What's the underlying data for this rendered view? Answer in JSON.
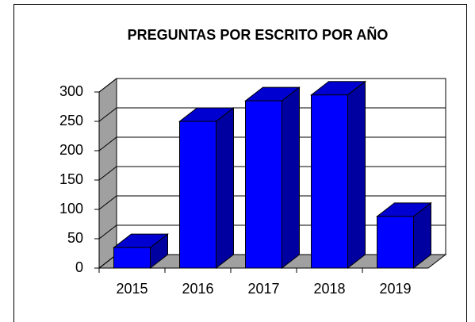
{
  "chart_data": {
    "type": "bar3d",
    "title": "PREGUNTAS POR ESCRITO POR AÑO",
    "categories": [
      "2015",
      "2016",
      "2017",
      "2018",
      "2019"
    ],
    "values": [
      35,
      250,
      285,
      295,
      88
    ],
    "color": "#0000ff",
    "ylim": [
      0,
      300
    ],
    "yticks": [
      0,
      50,
      100,
      150,
      200,
      250,
      300
    ],
    "grid": true
  }
}
